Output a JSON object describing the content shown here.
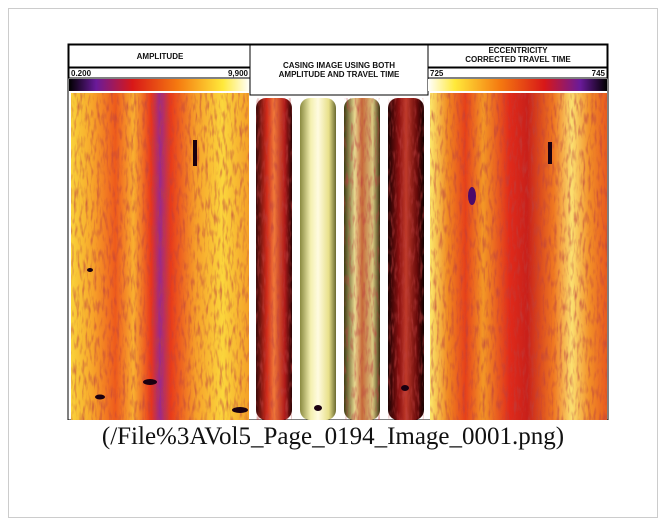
{
  "image": {
    "panels": [
      {
        "title": "AMPLITUDE",
        "scale_min": "0.200",
        "scale_max": "9,900"
      },
      {
        "title": "CASING IMAGE USING BOTH AMPLITUDE AND TRAVEL TIME"
      },
      {
        "title": "ECCENTRICITY CORRECTED TRAVEL TIME",
        "scale_min": "725",
        "scale_max": "745"
      }
    ]
  },
  "caption": "(/File%3AVol5_Page_0194_Image_0001.png)"
}
